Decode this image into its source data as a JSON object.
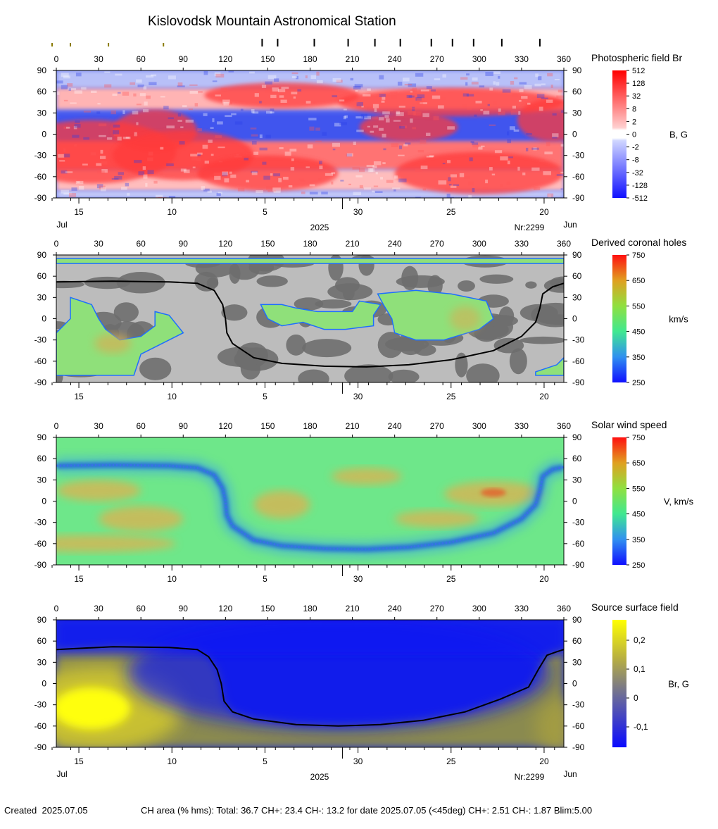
{
  "page": {
    "title": "Kislovodsk Mountain Astronomical Station",
    "created_label": "Created",
    "created_date": "2025.07.05",
    "stats_line": "CH area (% hms): Total: 36.7 CH+: 23.4   CH-: 13.2 for date 2025.07.05 (<45deg) CH+: 2.51    CH-: 1.87 Blim:5.00",
    "month_left": "Jul",
    "month_right": "Jun",
    "year": "2025",
    "rotation": "Nr:2299"
  },
  "axes": {
    "longitude_ticks": [
      0,
      30,
      60,
      90,
      120,
      150,
      180,
      210,
      240,
      270,
      300,
      330,
      360
    ],
    "latitude_ticks": [
      90,
      60,
      30,
      0,
      -30,
      -60,
      -90
    ],
    "date_ticks": [
      {
        "label": "15",
        "lon": 16
      },
      {
        "label": "10",
        "lon": 82
      },
      {
        "label": "5",
        "lon": 148
      },
      {
        "label": "30",
        "lon": 214
      },
      {
        "label": "25",
        "lon": 280
      },
      {
        "label": "20",
        "lon": 346
      }
    ],
    "year_marker_lon": 203,
    "observation_marks": [
      -3,
      10,
      37,
      76,
      146,
      157,
      183,
      207,
      226,
      244,
      266,
      281,
      296,
      316,
      343
    ]
  },
  "colors": {
    "neutral_line": "#000000",
    "ch_dark": "#6e6e6e",
    "ch_light": "#bcbcbc",
    "ch_edge": "#1e6eff"
  },
  "chart_data": [
    {
      "id": "photospheric",
      "type": "heatmap",
      "title": "Photospheric field Br",
      "unit_label": "B, G",
      "scale_labels": [
        "512",
        "128",
        "32",
        "8",
        "2",
        "0",
        "-2",
        "-8",
        "-32",
        "-128",
        "-512"
      ],
      "xlim": [
        0,
        360
      ],
      "ylim": [
        -90,
        90
      ],
      "positive_regions": [
        {
          "lon": 25,
          "lat": -25,
          "rlon": 60,
          "rlat": 45
        },
        {
          "lon": 70,
          "lat": 5,
          "rlon": 30,
          "rlat": 30
        },
        {
          "lon": 90,
          "lat": -30,
          "rlon": 50,
          "rlat": 35
        },
        {
          "lon": 160,
          "lat": 55,
          "rlon": 55,
          "rlat": 18
        },
        {
          "lon": 150,
          "lat": -55,
          "rlon": 50,
          "rlat": 25
        },
        {
          "lon": 250,
          "lat": 10,
          "rlon": 35,
          "rlat": 20
        },
        {
          "lon": 280,
          "lat": 45,
          "rlon": 80,
          "rlat": 20
        },
        {
          "lon": 300,
          "lat": -55,
          "rlon": 60,
          "rlat": 30
        },
        {
          "lon": 352,
          "lat": 20,
          "rlon": 25,
          "rlat": 30
        }
      ]
    },
    {
      "id": "coronal_holes",
      "type": "heatmap",
      "title": "Derived coronal holes",
      "unit_label": "km/s",
      "scale_labels": [
        "750",
        "650",
        "550",
        "450",
        "350",
        "250"
      ],
      "xlim": [
        0,
        360
      ],
      "ylim": [
        -90,
        90
      ],
      "holes": [
        {
          "points": [
            [
              10,
              30
            ],
            [
              25,
              20
            ],
            [
              30,
              0
            ],
            [
              35,
              -15
            ],
            [
              45,
              -30
            ],
            [
              60,
              -25
            ],
            [
              70,
              -10
            ],
            [
              70,
              10
            ],
            [
              80,
              5
            ],
            [
              90,
              -20
            ],
            [
              60,
              -50
            ],
            [
              55,
              -80
            ],
            [
              0,
              -80
            ],
            [
              0,
              -20
            ],
            [
              10,
              0
            ]
          ]
        },
        {
          "points": [
            [
              145,
              20
            ],
            [
              150,
              0
            ],
            [
              160,
              -10
            ],
            [
              175,
              -5
            ],
            [
              190,
              -15
            ],
            [
              205,
              -15
            ],
            [
              225,
              -10
            ],
            [
              225,
              5
            ],
            [
              230,
              20
            ],
            [
              215,
              25
            ],
            [
              210,
              10
            ],
            [
              185,
              10
            ],
            [
              170,
              15
            ],
            [
              160,
              20
            ]
          ]
        },
        {
          "points": [
            [
              228,
              35
            ],
            [
              255,
              40
            ],
            [
              280,
              35
            ],
            [
              305,
              25
            ],
            [
              310,
              0
            ],
            [
              300,
              -15
            ],
            [
              275,
              -30
            ],
            [
              255,
              -30
            ],
            [
              240,
              -20
            ],
            [
              238,
              0
            ],
            [
              232,
              20
            ]
          ]
        },
        {
          "points": [
            [
              0,
              85
            ],
            [
              360,
              85
            ],
            [
              360,
              78
            ],
            [
              0,
              78
            ]
          ]
        },
        {
          "points": [
            [
              340,
              -75
            ],
            [
              355,
              -65
            ],
            [
              360,
              -55
            ],
            [
              360,
              -80
            ],
            [
              340,
              -80
            ]
          ]
        }
      ],
      "neutral_line": [
        [
          0,
          52
        ],
        [
          40,
          53
        ],
        [
          80,
          52
        ],
        [
          100,
          50
        ],
        [
          112,
          40
        ],
        [
          118,
          20
        ],
        [
          120,
          0
        ],
        [
          121,
          -20
        ],
        [
          125,
          -35
        ],
        [
          140,
          -55
        ],
        [
          160,
          -63
        ],
        [
          190,
          -67
        ],
        [
          220,
          -68
        ],
        [
          250,
          -65
        ],
        [
          280,
          -58
        ],
        [
          310,
          -45
        ],
        [
          330,
          -25
        ],
        [
          340,
          -5
        ],
        [
          343,
          15
        ],
        [
          345,
          35
        ],
        [
          352,
          45
        ],
        [
          360,
          50
        ]
      ]
    },
    {
      "id": "solar_wind",
      "type": "heatmap",
      "title": "Solar wind speed",
      "unit_label": "V, km/s",
      "scale_labels": [
        "750",
        "650",
        "550",
        "450",
        "350",
        "250"
      ],
      "xlim": [
        0,
        360
      ],
      "ylim": [
        -90,
        90
      ],
      "slow_band": [
        [
          0,
          50
        ],
        [
          40,
          51
        ],
        [
          80,
          50
        ],
        [
          100,
          47
        ],
        [
          112,
          37
        ],
        [
          118,
          18
        ],
        [
          120,
          0
        ],
        [
          121,
          -20
        ],
        [
          125,
          -35
        ],
        [
          140,
          -55
        ],
        [
          160,
          -63
        ],
        [
          190,
          -67
        ],
        [
          220,
          -68
        ],
        [
          250,
          -65
        ],
        [
          280,
          -58
        ],
        [
          310,
          -45
        ],
        [
          330,
          -25
        ],
        [
          340,
          -5
        ],
        [
          343,
          15
        ],
        [
          345,
          35
        ],
        [
          352,
          45
        ],
        [
          360,
          48
        ]
      ],
      "fast_spots": [
        {
          "lon": 310,
          "lat": 10,
          "rlon": 35,
          "rlat": 18
        },
        {
          "lon": 25,
          "lat": -60,
          "rlon": 60,
          "rlat": 12
        },
        {
          "lon": 60,
          "lat": -25,
          "rlon": 30,
          "rlat": 18
        },
        {
          "lon": 160,
          "lat": -5,
          "rlon": 20,
          "rlat": 20
        },
        {
          "lon": 270,
          "lat": -25,
          "rlon": 30,
          "rlat": 12
        },
        {
          "lon": 220,
          "lat": 35,
          "rlon": 25,
          "rlat": 12
        },
        {
          "lon": 30,
          "lat": 15,
          "rlon": 30,
          "rlat": 15
        }
      ]
    },
    {
      "id": "source_surface",
      "type": "heatmap",
      "title": "Source surface field",
      "unit_label": "Br, G",
      "scale_labels": [
        "0,2",
        "0,1",
        "0",
        "-0,1"
      ],
      "xlim": [
        0,
        360
      ],
      "ylim": [
        -90,
        90
      ],
      "neutral_line": [
        [
          0,
          48
        ],
        [
          40,
          52
        ],
        [
          80,
          51
        ],
        [
          100,
          48
        ],
        [
          108,
          38
        ],
        [
          114,
          20
        ],
        [
          117,
          0
        ],
        [
          119,
          -25
        ],
        [
          125,
          -40
        ],
        [
          140,
          -50
        ],
        [
          170,
          -58
        ],
        [
          200,
          -60
        ],
        [
          230,
          -58
        ],
        [
          260,
          -52
        ],
        [
          290,
          -40
        ],
        [
          315,
          -22
        ],
        [
          335,
          -5
        ],
        [
          342,
          20
        ],
        [
          348,
          40
        ],
        [
          355,
          45
        ],
        [
          360,
          48
        ]
      ]
    }
  ]
}
